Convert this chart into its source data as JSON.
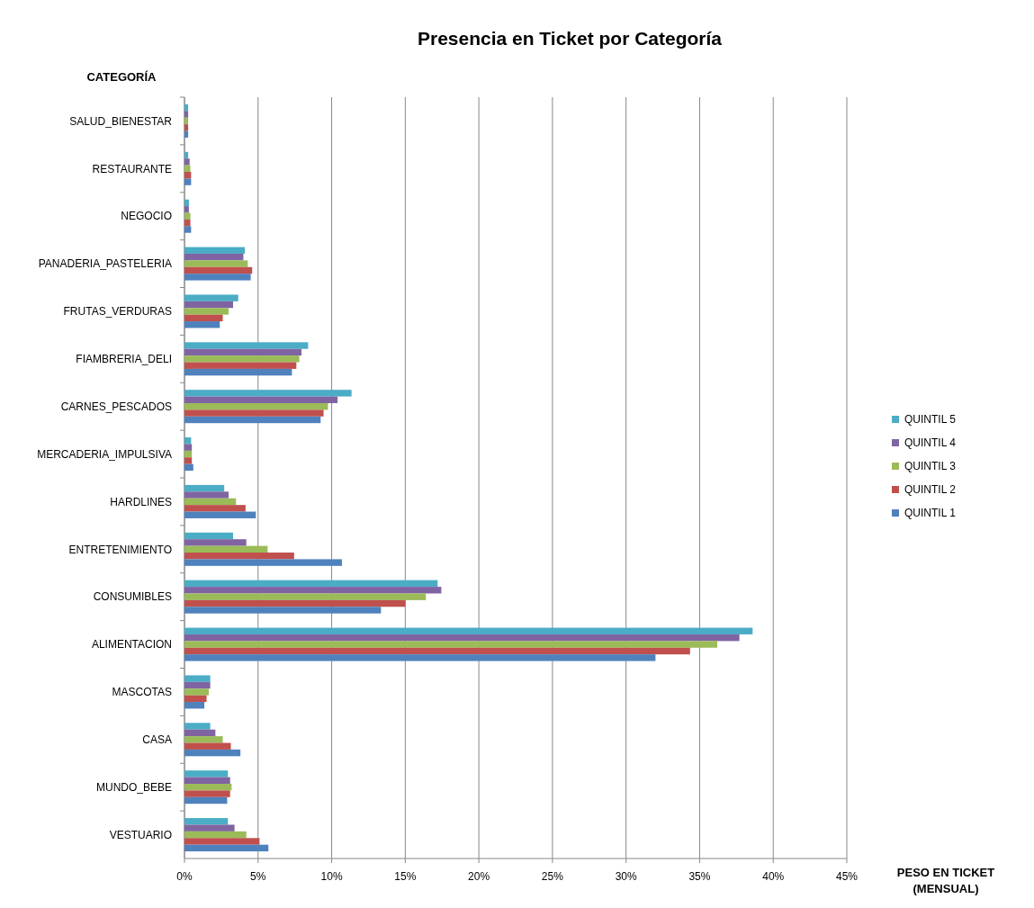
{
  "chart_data": {
    "type": "bar",
    "orientation": "horizontal",
    "title": "Presencia en Ticket por Categoría",
    "ylabel": "CATEGORÍA",
    "xlabel": "PESO EN TICKET\n(MENSUAL)",
    "categories": [
      "SALUD_BIENESTAR",
      "RESTAURANTE",
      "NEGOCIO",
      "PANADERIA_PASTELERIA",
      "FRUTAS_VERDURAS",
      "FIAMBRERIA_DELI",
      "CARNES_PESCADOS",
      "MERCADERIA_IMPULSIVA",
      "HARDLINES",
      "ENTRETENIMIENTO",
      "CONSUMIBLES",
      "ALIMENTACION",
      "MASCOTAS",
      "CASA",
      "MUNDO_BEBE",
      "VESTUARIO"
    ],
    "series": [
      {
        "name": "QUINTIL 5",
        "color": "#4bacc6",
        "values": [
          0.25,
          0.25,
          0.3,
          4.1,
          3.65,
          8.4,
          11.35,
          0.45,
          2.7,
          3.3,
          17.2,
          38.6,
          1.75,
          1.75,
          2.95,
          2.95
        ]
      },
      {
        "name": "QUINTIL 4",
        "color": "#8064a2",
        "values": [
          0.25,
          0.35,
          0.3,
          4.0,
          3.3,
          7.95,
          10.4,
          0.5,
          3.0,
          4.2,
          17.45,
          37.7,
          1.75,
          2.1,
          3.1,
          3.4
        ]
      },
      {
        "name": "QUINTIL 3",
        "color": "#9bbb59",
        "values": [
          0.25,
          0.4,
          0.4,
          4.3,
          3.0,
          7.8,
          9.75,
          0.5,
          3.5,
          5.65,
          16.4,
          36.2,
          1.65,
          2.6,
          3.2,
          4.2
        ]
      },
      {
        "name": "QUINTIL 2",
        "color": "#c0504d",
        "values": [
          0.25,
          0.45,
          0.4,
          4.6,
          2.6,
          7.6,
          9.45,
          0.5,
          4.15,
          7.45,
          15.0,
          34.35,
          1.5,
          3.15,
          3.1,
          5.1
        ]
      },
      {
        "name": "QUINTIL 1",
        "color": "#4f81bd",
        "values": [
          0.25,
          0.45,
          0.45,
          4.5,
          2.4,
          7.3,
          9.25,
          0.6,
          4.85,
          10.7,
          13.35,
          32.0,
          1.35,
          3.8,
          2.9,
          5.7
        ]
      }
    ],
    "xlim": [
      0,
      45
    ],
    "xticks": [
      {
        "value": 0,
        "label": "0%"
      },
      {
        "value": 5,
        "label": "5%"
      },
      {
        "value": 10,
        "label": "10%"
      },
      {
        "value": 15,
        "label": "15%"
      },
      {
        "value": 20,
        "label": "20%"
      },
      {
        "value": 25,
        "label": "25%"
      },
      {
        "value": 30,
        "label": "30%"
      },
      {
        "value": 35,
        "label": "35%"
      },
      {
        "value": 40,
        "label": "40%"
      },
      {
        "value": 45,
        "label": "45%"
      }
    ],
    "grid": "x",
    "legend": "right"
  }
}
